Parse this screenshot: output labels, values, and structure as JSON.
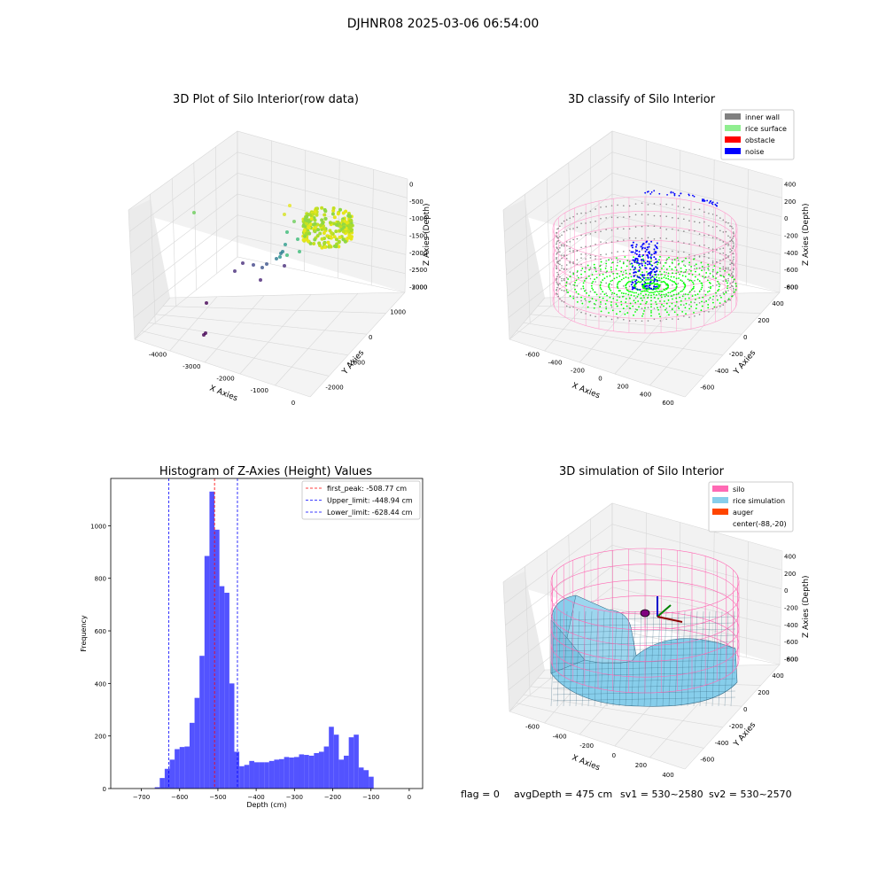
{
  "figure_title": "DJHNR08 2025-03-06 06:54:00",
  "chart_data": [
    {
      "type": "scatter",
      "title": "3D Plot of Silo Interior(row data)",
      "xlabel": "X Axies",
      "ylabel": "Y Axies",
      "zlabel": "Z Axies (Depth)",
      "x_ticks": [
        "-4000",
        "-3000",
        "-2000",
        "-1000",
        "0"
      ],
      "y_ticks": [
        "-2000",
        "-1000",
        "0",
        "1000",
        "2000"
      ],
      "z_ticks": [
        "0",
        "-500",
        "-1000",
        "-1500",
        "-2000",
        "-2500",
        "-3000"
      ]
    },
    {
      "type": "scatter",
      "title": "3D classify of Silo Interior",
      "xlabel": "X Axies",
      "ylabel": "Y Axies",
      "zlabel": "Z Axies (Depth)",
      "x_ticks": [
        "-600",
        "-400",
        "-200",
        "0",
        "200",
        "400",
        "600"
      ],
      "y_ticks": [
        "-600",
        "-400",
        "-200",
        "0",
        "200",
        "400",
        "600"
      ],
      "z_ticks": [
        "400",
        "200",
        "0",
        "-200",
        "-400",
        "-600",
        "-800"
      ],
      "legend": [
        {
          "label": "inner wall",
          "color": "#808080"
        },
        {
          "label": "rice surface",
          "color": "#90ee90"
        },
        {
          "label": "obstacle",
          "color": "#ff0000"
        },
        {
          "label": "noise",
          "color": "#0000ff"
        }
      ],
      "legend_position": "top-right"
    },
    {
      "type": "bar",
      "title": "Histogram of Z-Axies (Height) Values",
      "xlabel": "Depth (cm)",
      "ylabel": "Frequency",
      "xlim": [
        -780,
        35
      ],
      "ylim": [
        0,
        1180
      ],
      "x_ticks": [
        -700,
        -600,
        -500,
        -400,
        -300,
        -200,
        -100,
        0
      ],
      "y_ticks": [
        0,
        200,
        400,
        600,
        800,
        1000
      ],
      "bin_edges": [
        -665,
        -652,
        -639,
        -626,
        -613,
        -600,
        -587,
        -574,
        -561,
        -548,
        -535,
        -522,
        -509,
        -496,
        -483,
        -470,
        -457,
        -444,
        -431,
        -418,
        -405,
        -392,
        -379,
        -366,
        -353,
        -340,
        -327,
        -314,
        -301,
        -288,
        -275,
        -262,
        -249,
        -236,
        -223,
        -210,
        -197,
        -184,
        -171,
        -158,
        -145,
        -132,
        -119,
        -106,
        -93,
        -80,
        -67,
        -54,
        -41,
        -28,
        -15,
        -2
      ],
      "values": [
        5,
        40,
        75,
        110,
        150,
        158,
        160,
        250,
        345,
        505,
        885,
        1130,
        985,
        770,
        745,
        400,
        140,
        85,
        90,
        105,
        100,
        100,
        100,
        105,
        110,
        112,
        120,
        118,
        120,
        130,
        128,
        125,
        135,
        140,
        160,
        235,
        205,
        110,
        125,
        195,
        205,
        80,
        70,
        45,
        0,
        0,
        0,
        0,
        0,
        0,
        0
      ],
      "bar_color": "#4a4aff",
      "vlines": [
        {
          "label": "first_peak: -508.77 cm",
          "x": -508.77,
          "color": "#ff0000"
        },
        {
          "label": "Upper_limit: -448.94 cm",
          "x": -448.94,
          "color": "#0000ff"
        },
        {
          "label": "Lower_limit: -628.44 cm",
          "x": -628.44,
          "color": "#0000ff"
        }
      ],
      "legend_position": "top-right"
    },
    {
      "type": "area",
      "title": "3D simulation of Silo Interior",
      "xlabel": "X Axies",
      "ylabel": "Y Axies",
      "zlabel": "Z Axies (Depth)",
      "x_ticks": [
        "-600",
        "-400",
        "-200",
        "0",
        "200",
        "400"
      ],
      "y_ticks": [
        "-600",
        "-400",
        "-200",
        "0",
        "200",
        "400",
        "600"
      ],
      "z_ticks": [
        "400",
        "200",
        "0",
        "-200",
        "-400",
        "-600",
        "-800"
      ],
      "legend": [
        {
          "label": "silo",
          "color": "#ff69b4"
        },
        {
          "label": "rice simulation",
          "color": "#87ceeb"
        },
        {
          "label": "auger",
          "color": "#ff4500"
        },
        {
          "label": "center(-88,-20)",
          "color": ""
        }
      ],
      "legend_position": "top-right"
    }
  ],
  "footer": {
    "flag": "flag = 0",
    "avg_depth": "avgDepth = 475 cm",
    "sv1": "sv1 = 530~2580",
    "sv2": "sv2 = 530~2570"
  }
}
